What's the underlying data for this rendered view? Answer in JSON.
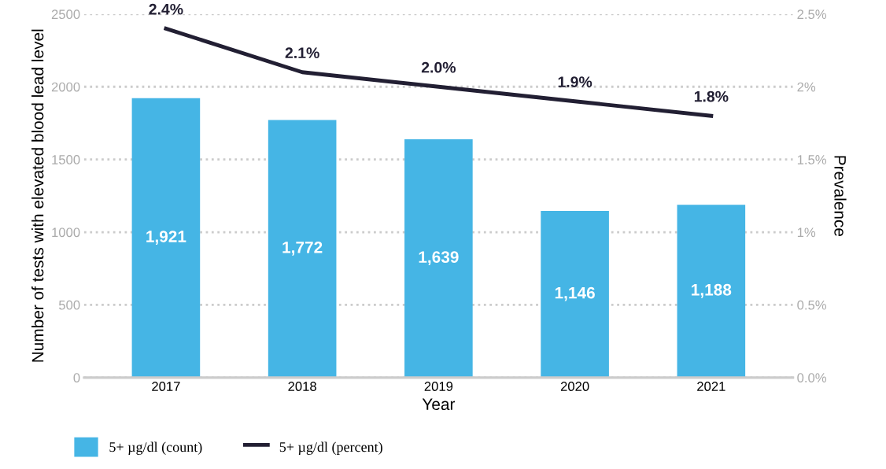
{
  "chart_data": {
    "type": "bar",
    "xlabel": "Year",
    "ylabel": "Number of tests with elevated blood lead level",
    "y2label": "Prevalence",
    "categories": [
      "2017",
      "2018",
      "2019",
      "2020",
      "2021"
    ],
    "series": [
      {
        "name": "5+ µg/dl (count)",
        "color": "#45b5e5",
        "values": [
          1921,
          1772,
          1639,
          1146,
          1188
        ],
        "value_labels": [
          "1,921",
          "1,772",
          "1,639",
          "1,146",
          "1,188"
        ]
      },
      {
        "name": "5+ µg/dl (percent)",
        "type": "line",
        "axis": "y2",
        "color": "#221f33",
        "values": [
          2.4,
          2.1,
          2.0,
          1.9,
          1.8
        ],
        "value_labels": [
          "2.4%",
          "2.1%",
          "2.0%",
          "1.9%",
          "1.8%"
        ],
        "marker": "none",
        "line_style": "solid"
      }
    ],
    "ylim": [
      0,
      2500
    ],
    "yticks": [
      0,
      500,
      1000,
      1500,
      2000,
      2500
    ],
    "y2lim": [
      0,
      2.5
    ],
    "y2ticks": [
      {
        "value": 0,
        "label": "0.0%"
      },
      {
        "value": 0.5,
        "label": "0.5%"
      },
      {
        "value": 1,
        "label": "1%"
      },
      {
        "value": 1.5,
        "label": "1.5%"
      },
      {
        "value": 2,
        "label": "2%"
      },
      {
        "value": 2.5,
        "label": "2.5%"
      }
    ],
    "grid": "y",
    "legend": "bottom left"
  }
}
